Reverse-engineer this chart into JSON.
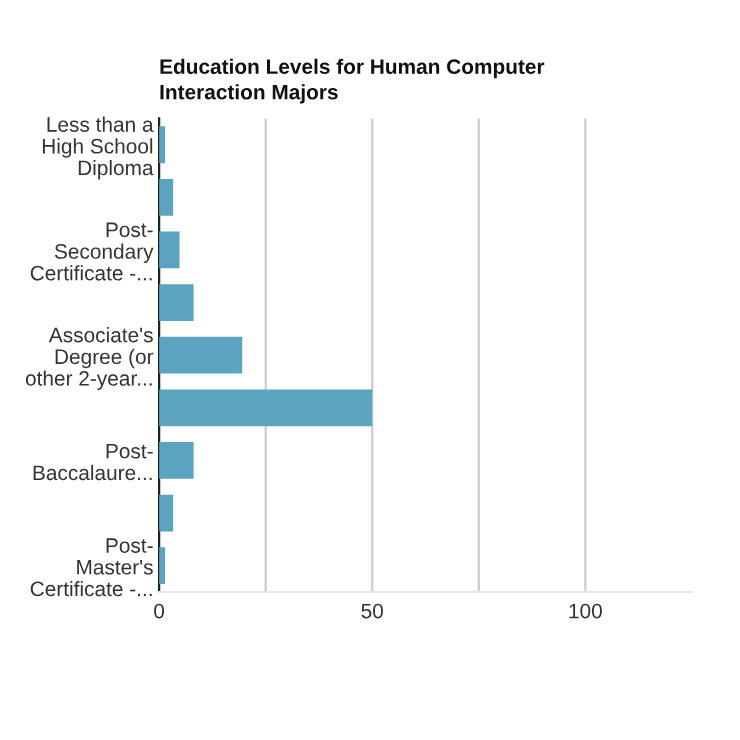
{
  "chart_data": {
    "type": "bar",
    "orientation": "horizontal",
    "title": "Education Levels for Human Computer\nInteraction Majors",
    "categories": [
      "Less than a\nHigh School\nDiploma",
      null,
      "Post-\nSecondary\nCertificate -...",
      null,
      "Associate's\nDegree (or\nother 2-year...",
      null,
      "Post-\nBaccalaure...",
      null,
      "Post-\nMaster's\nCertificate -..."
    ],
    "values": [
      1.4,
      3.3,
      4.8,
      8.1,
      19.5,
      50,
      8.1,
      3.3,
      1.4
    ],
    "color": "#5ba3c0",
    "xlim": [
      0,
      125
    ],
    "xticks": [
      0,
      {
        "value": 25,
        "label": null
      },
      50,
      {
        "value": 75,
        "label": null
      },
      100
    ],
    "grid": "x"
  }
}
